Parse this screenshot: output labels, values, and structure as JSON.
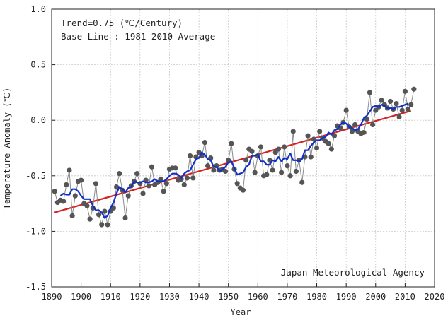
{
  "chart_data": {
    "type": "line",
    "title": "",
    "xlabel": "Year",
    "ylabel": "Temperature Anomaly (℃)",
    "xlim": [
      1890,
      2020
    ],
    "ylim": [
      -1.5,
      1.0
    ],
    "grid": true,
    "x_ticks": [
      1890,
      1900,
      1910,
      1920,
      1930,
      1940,
      1950,
      1960,
      1970,
      1980,
      1990,
      2000,
      2010,
      2020
    ],
    "y_ticks": [
      -1.5,
      -1.0,
      -0.5,
      0.0,
      0.5,
      1.0
    ],
    "x_tick_labels": [
      "1890",
      "1900",
      "1910",
      "1920",
      "1930",
      "1940",
      "1950",
      "1960",
      "1970",
      "1980",
      "1990",
      "2000",
      "2010",
      "2020"
    ],
    "y_tick_labels": [
      "-1.5",
      "-1.0",
      "-0.5",
      "0.0",
      "0.5",
      "1.0"
    ],
    "annotations": {
      "trend": "Trend=0.75 (℃/Century)",
      "baseline": "Base Line : 1981-2010 Average",
      "source": "Japan Meteorological Agency"
    },
    "colors": {
      "annual": "#555555",
      "annual_line": "#8a8a8a",
      "smoothed": "#1030c8",
      "trend": "#d42020",
      "grid": "#c8c8c8"
    },
    "series": [
      {
        "kind": "annual",
        "x": [
          1891,
          1892,
          1893,
          1894,
          1895,
          1896,
          1897,
          1898,
          1899,
          1900,
          1901,
          1902,
          1903,
          1904,
          1905,
          1906,
          1907,
          1908,
          1909,
          1910,
          1911,
          1912,
          1913,
          1914,
          1915,
          1916,
          1917,
          1918,
          1919,
          1920,
          1921,
          1922,
          1923,
          1924,
          1925,
          1926,
          1927,
          1928,
          1929,
          1930,
          1931,
          1932,
          1933,
          1934,
          1935,
          1936,
          1937,
          1938,
          1939,
          1940,
          1941,
          1942,
          1943,
          1944,
          1945,
          1946,
          1947,
          1948,
          1949,
          1950,
          1951,
          1952,
          1953,
          1954,
          1955,
          1956,
          1957,
          1958,
          1959,
          1960,
          1961,
          1962,
          1963,
          1964,
          1965,
          1966,
          1967,
          1968,
          1969,
          1970,
          1971,
          1972,
          1973,
          1974,
          1975,
          1976,
          1977,
          1978,
          1979,
          1980,
          1981,
          1982,
          1983,
          1984,
          1985,
          1986,
          1987,
          1988,
          1989,
          1990,
          1991,
          1992,
          1993,
          1994,
          1995,
          1996,
          1997,
          1998,
          1999,
          2000,
          2001,
          2002,
          2003,
          2004,
          2005,
          2006,
          2007,
          2008,
          2009,
          2010,
          2011,
          2012,
          2013
        ],
        "values": [
          -0.64,
          -0.74,
          -0.72,
          -0.73,
          -0.58,
          -0.45,
          -0.86,
          -0.68,
          -0.55,
          -0.54,
          -0.75,
          -0.77,
          -0.89,
          -0.79,
          -0.57,
          -0.85,
          -0.94,
          -0.82,
          -0.94,
          -0.82,
          -0.79,
          -0.6,
          -0.48,
          -0.63,
          -0.88,
          -0.68,
          -0.59,
          -0.55,
          -0.48,
          -0.57,
          -0.66,
          -0.54,
          -0.59,
          -0.42,
          -0.58,
          -0.56,
          -0.53,
          -0.64,
          -0.57,
          -0.44,
          -0.43,
          -0.43,
          -0.54,
          -0.53,
          -0.58,
          -0.52,
          -0.32,
          -0.52,
          -0.33,
          -0.29,
          -0.32,
          -0.2,
          -0.41,
          -0.34,
          -0.45,
          -0.41,
          -0.45,
          -0.44,
          -0.46,
          -0.36,
          -0.21,
          -0.44,
          -0.57,
          -0.61,
          -0.63,
          -0.36,
          -0.26,
          -0.28,
          -0.47,
          -0.32,
          -0.24,
          -0.5,
          -0.49,
          -0.36,
          -0.45,
          -0.29,
          -0.26,
          -0.47,
          -0.24,
          -0.41,
          -0.5,
          -0.1,
          -0.46,
          -0.36,
          -0.56,
          -0.33,
          -0.14,
          -0.33,
          -0.17,
          -0.25,
          -0.1,
          -0.16,
          -0.19,
          -0.21,
          -0.26,
          -0.14,
          -0.05,
          -0.07,
          -0.02,
          0.09,
          -0.06,
          -0.1,
          -0.04,
          -0.1,
          -0.12,
          -0.11,
          0.01,
          0.25,
          -0.04,
          0.09,
          0.12,
          0.18,
          0.14,
          0.11,
          0.17,
          0.1,
          0.15,
          0.03,
          0.09,
          0.26,
          0.1,
          0.14,
          0.28
        ]
      },
      {
        "kind": "smoothed",
        "x": [
          1893,
          1894,
          1895,
          1896,
          1897,
          1898,
          1899,
          1900,
          1901,
          1902,
          1903,
          1904,
          1905,
          1906,
          1907,
          1908,
          1909,
          1910,
          1911,
          1912,
          1913,
          1914,
          1915,
          1916,
          1917,
          1918,
          1919,
          1920,
          1921,
          1922,
          1923,
          1924,
          1925,
          1926,
          1927,
          1928,
          1929,
          1930,
          1931,
          1932,
          1933,
          1934,
          1935,
          1936,
          1937,
          1938,
          1939,
          1940,
          1941,
          1942,
          1943,
          1944,
          1945,
          1946,
          1947,
          1948,
          1949,
          1950,
          1951,
          1952,
          1953,
          1954,
          1955,
          1956,
          1957,
          1958,
          1959,
          1960,
          1961,
          1962,
          1963,
          1964,
          1965,
          1966,
          1967,
          1968,
          1969,
          1970,
          1971,
          1972,
          1973,
          1974,
          1975,
          1976,
          1977,
          1978,
          1979,
          1980,
          1981,
          1982,
          1983,
          1984,
          1985,
          1986,
          1987,
          1988,
          1989,
          1990,
          1991,
          1992,
          1993,
          1994,
          1995,
          1996,
          1997,
          1998,
          1999,
          2000,
          2001,
          2002,
          2003,
          2004,
          2005,
          2006,
          2007,
          2008,
          2009,
          2010,
          2011
        ],
        "values": [
          -0.68,
          -0.66,
          -0.67,
          -0.67,
          -0.62,
          -0.62,
          -0.64,
          -0.68,
          -0.71,
          -0.71,
          -0.71,
          -0.77,
          -0.81,
          -0.81,
          -0.83,
          -0.88,
          -0.86,
          -0.79,
          -0.74,
          -0.66,
          -0.6,
          -0.62,
          -0.65,
          -0.61,
          -0.6,
          -0.55,
          -0.56,
          -0.56,
          -0.55,
          -0.56,
          -0.56,
          -0.55,
          -0.53,
          -0.55,
          -0.55,
          -0.55,
          -0.53,
          -0.5,
          -0.48,
          -0.48,
          -0.49,
          -0.52,
          -0.48,
          -0.46,
          -0.45,
          -0.4,
          -0.35,
          -0.34,
          -0.29,
          -0.31,
          -0.35,
          -0.36,
          -0.42,
          -0.42,
          -0.46,
          -0.44,
          -0.42,
          -0.38,
          -0.37,
          -0.43,
          -0.49,
          -0.48,
          -0.47,
          -0.42,
          -0.4,
          -0.32,
          -0.32,
          -0.31,
          -0.37,
          -0.37,
          -0.4,
          -0.4,
          -0.36,
          -0.37,
          -0.33,
          -0.37,
          -0.34,
          -0.35,
          -0.3,
          -0.36,
          -0.36,
          -0.37,
          -0.35,
          -0.27,
          -0.27,
          -0.23,
          -0.2,
          -0.18,
          -0.18,
          -0.16,
          -0.15,
          -0.11,
          -0.13,
          -0.09,
          -0.08,
          -0.04,
          -0.02,
          -0.03,
          -0.06,
          -0.07,
          -0.09,
          -0.08,
          -0.04,
          0.02,
          0.04,
          0.08,
          0.12,
          0.13,
          0.12,
          0.14,
          0.13,
          0.11,
          0.11,
          0.1,
          0.12,
          0.12,
          0.13,
          0.14,
          0.15
        ]
      },
      {
        "kind": "trend",
        "x": [
          1891,
          2012
        ],
        "values": [
          -0.83,
          0.085
        ]
      }
    ]
  }
}
